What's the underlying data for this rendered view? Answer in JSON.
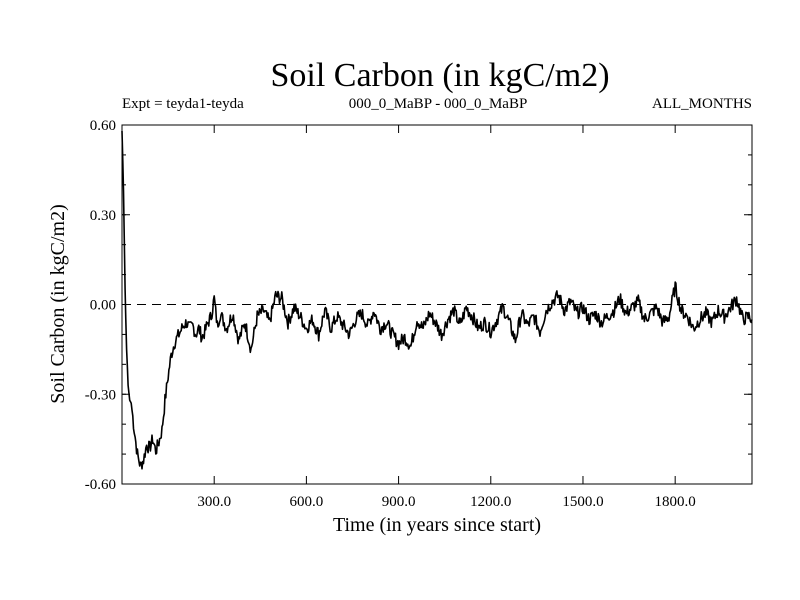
{
  "chart_data": {
    "type": "line",
    "title": "Soil Carbon (in kgC/m2)",
    "subtitle_left": "Expt = teyda1-teyda",
    "subtitle_center": "000_0_MaBP - 000_0_MaBP",
    "subtitle_right": "ALL_MONTHS",
    "xlabel": "Time (in years since start)",
    "ylabel": "Soil Carbon (in kgC/m2)",
    "xlim": [
      0,
      2050
    ],
    "ylim": [
      -0.6,
      0.6
    ],
    "xticks": [
      300,
      600,
      900,
      1200,
      1500,
      1800
    ],
    "xtick_labels": [
      "300.0",
      "600.0",
      "900.0",
      "1200.0",
      "1500.0",
      "1800.0"
    ],
    "yticks": [
      0.6,
      0.3,
      0.0,
      -0.3,
      -0.6
    ],
    "ytick_labels": [
      "0.60",
      "0.30",
      "0.00",
      "-0.30",
      "-0.60"
    ],
    "reference_line": {
      "y": 0.0,
      "style": "dashed"
    },
    "series": [
      {
        "name": "Soil Carbon",
        "color": "#000000",
        "x": [
          0,
          5,
          10,
          15,
          20,
          25,
          30,
          40,
          50,
          60,
          70,
          80,
          90,
          100,
          110,
          120,
          130,
          140,
          150,
          160,
          170,
          180,
          190,
          200,
          210,
          220,
          230,
          240,
          250,
          260,
          270,
          280,
          290,
          300,
          310,
          320,
          340,
          360,
          380,
          400,
          420,
          440,
          460,
          480,
          500,
          520,
          540,
          560,
          580,
          600,
          620,
          640,
          660,
          680,
          700,
          720,
          740,
          760,
          780,
          800,
          820,
          840,
          860,
          880,
          900,
          920,
          940,
          960,
          980,
          1000,
          1020,
          1040,
          1060,
          1080,
          1100,
          1120,
          1140,
          1160,
          1180,
          1200,
          1220,
          1240,
          1260,
          1280,
          1300,
          1320,
          1340,
          1360,
          1380,
          1400,
          1420,
          1440,
          1460,
          1480,
          1500,
          1520,
          1540,
          1560,
          1580,
          1600,
          1620,
          1640,
          1660,
          1680,
          1700,
          1720,
          1740,
          1760,
          1780,
          1800,
          1820,
          1840,
          1860,
          1880,
          1900,
          1920,
          1940,
          1960,
          1980,
          2000,
          2020,
          2040,
          2050
        ],
        "values": [
          0.58,
          0.38,
          0.05,
          -0.15,
          -0.27,
          -0.32,
          -0.33,
          -0.42,
          -0.5,
          -0.54,
          -0.52,
          -0.47,
          -0.48,
          -0.45,
          -0.49,
          -0.46,
          -0.42,
          -0.32,
          -0.24,
          -0.17,
          -0.13,
          -0.11,
          -0.09,
          -0.07,
          -0.06,
          -0.08,
          -0.07,
          -0.1,
          -0.08,
          -0.11,
          -0.09,
          -0.06,
          -0.04,
          0.02,
          -0.07,
          -0.03,
          -0.08,
          -0.03,
          -0.12,
          -0.06,
          -0.15,
          -0.04,
          -0.02,
          -0.06,
          0.03,
          0.02,
          -0.06,
          -0.01,
          -0.04,
          -0.08,
          -0.05,
          -0.1,
          -0.02,
          -0.08,
          -0.04,
          -0.07,
          -0.1,
          -0.05,
          -0.03,
          -0.07,
          -0.02,
          -0.08,
          -0.06,
          -0.1,
          -0.13,
          -0.11,
          -0.14,
          -0.05,
          -0.08,
          -0.03,
          -0.06,
          -0.1,
          -0.05,
          -0.02,
          -0.07,
          -0.01,
          -0.04,
          -0.08,
          -0.06,
          -0.09,
          -0.05,
          -0.01,
          -0.06,
          -0.12,
          -0.03,
          -0.07,
          -0.04,
          -0.09,
          -0.02,
          0.01,
          0.03,
          -0.02,
          0.01,
          -0.03,
          -0.01,
          -0.05,
          -0.03,
          -0.06,
          -0.04,
          -0.02,
          0.02,
          -0.03,
          -0.01,
          0.01,
          -0.05,
          -0.03,
          -0.01,
          -0.06,
          -0.04,
          0.06,
          -0.02,
          -0.04,
          -0.08,
          -0.05,
          -0.03,
          -0.06,
          -0.02,
          -0.04,
          -0.01,
          0.02,
          -0.05,
          -0.04,
          -0.05
        ]
      }
    ]
  }
}
